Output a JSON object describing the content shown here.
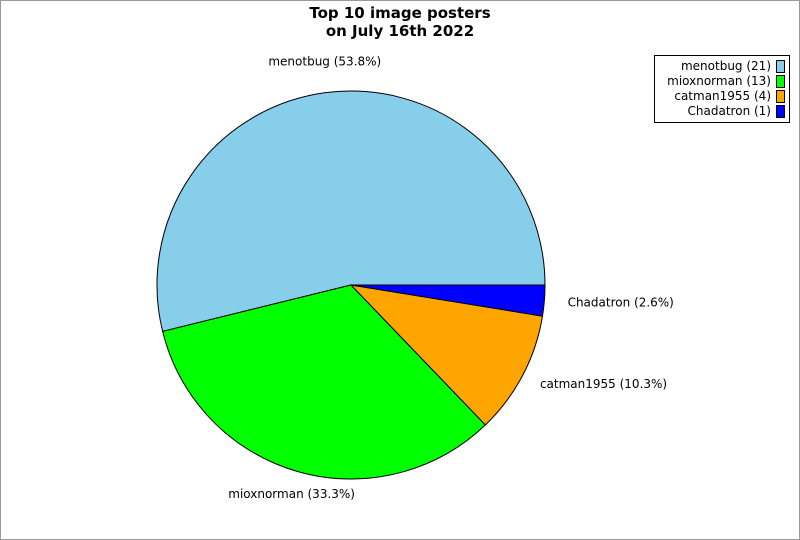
{
  "chart_data": {
    "type": "pie",
    "title_lines": [
      "Top 10 image posters",
      "on July 16th 2022"
    ],
    "slices": [
      {
        "name": "menotbug",
        "count": 21,
        "percent": 53.8,
        "label": "menotbug (53.8%)",
        "legend": "menotbug (21)",
        "color": "#87ceeb"
      },
      {
        "name": "mioxnorman",
        "count": 13,
        "percent": 33.3,
        "label": "mioxnorman (33.3%)",
        "legend": "mioxnorman (13)",
        "color": "#00ff00"
      },
      {
        "name": "catman1955",
        "count": 4,
        "percent": 10.3,
        "label": "catman1955 (10.3%)",
        "legend": "catman1955 (4)",
        "color": "#ffa500"
      },
      {
        "name": "Chadatron",
        "count": 1,
        "percent": 2.6,
        "label": "Chadatron (2.6%)",
        "legend": "Chadatron (1)",
        "color": "#0000ff"
      }
    ],
    "start_angle_deg": 0,
    "direction": "counterclockwise",
    "legend_position": "top-right"
  }
}
